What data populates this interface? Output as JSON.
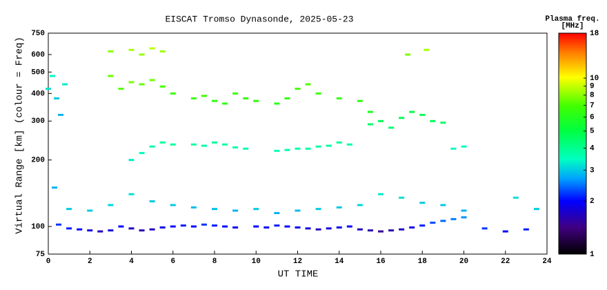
{
  "chart_data": {
    "type": "scatter",
    "title": "EISCAT Tromso Dynasonde, 2025-05-23",
    "xlabel": "UT TIME",
    "ylabel": "Virtual Range [km] (colour = Freq)",
    "colorbar_title": "Plasma freq.",
    "colorbar_unit": "[MHz]",
    "xlim": [
      0,
      24
    ],
    "xticks": [
      0,
      2,
      4,
      6,
      8,
      10,
      12,
      14,
      16,
      18,
      20,
      22,
      24
    ],
    "ylim": [
      75,
      750
    ],
    "yticks": [
      75,
      100,
      200,
      300,
      400,
      500,
      600,
      750
    ],
    "ylog": true,
    "clim": [
      1,
      18
    ],
    "cticks": [
      1,
      2,
      3,
      4,
      5,
      6,
      7,
      8,
      9,
      10,
      18
    ],
    "clog": true,
    "series": [
      {
        "x": [
          0.5,
          1,
          1.5,
          2,
          2.5,
          3,
          3.5,
          4,
          4.5,
          5,
          5.5,
          6,
          6.5,
          7,
          7.5,
          8,
          8.5,
          9,
          10,
          10.5,
          11,
          11.5,
          12,
          12.5,
          13,
          13.5,
          14,
          14.5,
          15,
          15.5,
          16,
          16.5,
          17,
          17.5,
          18,
          18.5,
          19,
          19.5,
          20,
          21,
          22,
          23,
          0.3,
          1,
          2,
          3,
          4,
          5,
          6,
          7,
          8,
          9,
          10,
          11,
          12,
          13,
          14,
          15,
          16,
          17,
          18,
          19,
          20,
          22.5,
          23.5,
          4,
          4.5,
          5,
          5.5,
          6,
          7,
          7.5,
          8,
          8.5,
          9,
          9.5,
          11,
          11.5,
          12,
          12.5,
          13,
          13.5,
          14,
          14.5,
          19.5,
          20,
          3,
          3.5,
          4,
          4.5,
          5,
          5.5,
          6,
          7,
          7.5,
          8,
          8.5,
          9,
          9.5,
          10,
          11,
          11.5,
          12,
          12.5,
          13,
          14,
          15,
          15.5,
          15.5,
          16,
          16.5,
          17,
          17.5,
          18,
          18.5,
          19,
          3,
          4,
          4.5,
          5,
          5.5,
          17.3,
          18.2,
          0,
          0.2,
          0.4,
          0.6,
          0.8
        ],
        "values": [
          102,
          98,
          97,
          96,
          95,
          96,
          100,
          98,
          96,
          97,
          99,
          100,
          101,
          100,
          102,
          101,
          100,
          99,
          100,
          99,
          101,
          100,
          99,
          98,
          97,
          98,
          99,
          100,
          97,
          96,
          95,
          96,
          97,
          99,
          101,
          104,
          106,
          108,
          110,
          98,
          95,
          97,
          150,
          120,
          118,
          125,
          140,
          130,
          125,
          122,
          120,
          118,
          120,
          115,
          118,
          120,
          122,
          125,
          140,
          135,
          128,
          125,
          118,
          135,
          120,
          200,
          215,
          230,
          240,
          235,
          235,
          232,
          240,
          235,
          228,
          225,
          220,
          222,
          225,
          225,
          230,
          232,
          240,
          235,
          225,
          230,
          480,
          420,
          450,
          440,
          460,
          430,
          400,
          380,
          390,
          370,
          360,
          400,
          380,
          370,
          360,
          380,
          420,
          440,
          400,
          380,
          370,
          330,
          290,
          300,
          280,
          310,
          330,
          320,
          300,
          295,
          620,
          630,
          600,
          640,
          620,
          600,
          630,
          420,
          480,
          380,
          320,
          440
        ],
        "freq": [
          2.2,
          2.1,
          2.0,
          1.8,
          1.7,
          1.8,
          2.0,
          1.7,
          1.6,
          1.7,
          1.9,
          2.0,
          2.1,
          2.0,
          2.2,
          2.1,
          2.0,
          1.9,
          2.0,
          1.9,
          2.1,
          2.0,
          1.9,
          1.8,
          1.7,
          1.8,
          1.9,
          2.0,
          1.7,
          1.6,
          1.5,
          1.6,
          1.7,
          1.9,
          2.1,
          2.3,
          2.4,
          2.5,
          2.6,
          2.2,
          2.0,
          2.1,
          2.8,
          3.0,
          3.0,
          3.1,
          3.2,
          3.0,
          3.0,
          2.9,
          2.9,
          2.8,
          3.0,
          2.8,
          2.9,
          3.0,
          3.0,
          3.1,
          3.3,
          3.2,
          3.0,
          3.0,
          2.8,
          3.2,
          3.0,
          3.3,
          3.5,
          3.7,
          3.9,
          3.8,
          3.8,
          3.7,
          3.9,
          3.8,
          3.7,
          3.6,
          3.5,
          3.6,
          3.7,
          3.7,
          3.8,
          3.8,
          3.9,
          3.8,
          3.4,
          3.5,
          7.5,
          7.2,
          7.8,
          7.4,
          7.6,
          7.0,
          6.8,
          6.6,
          6.8,
          6.4,
          6.3,
          6.8,
          6.6,
          6.4,
          6.2,
          6.5,
          7.0,
          7.2,
          6.8,
          6.6,
          6.4,
          5.8,
          4.5,
          4.7,
          4.4,
          4.8,
          5.0,
          4.9,
          4.7,
          4.6,
          8.0,
          8.5,
          8.2,
          8.8,
          8.4,
          7.8,
          8.5,
          3.2,
          3.4,
          3.0,
          2.8,
          3.3
        ]
      }
    ]
  }
}
